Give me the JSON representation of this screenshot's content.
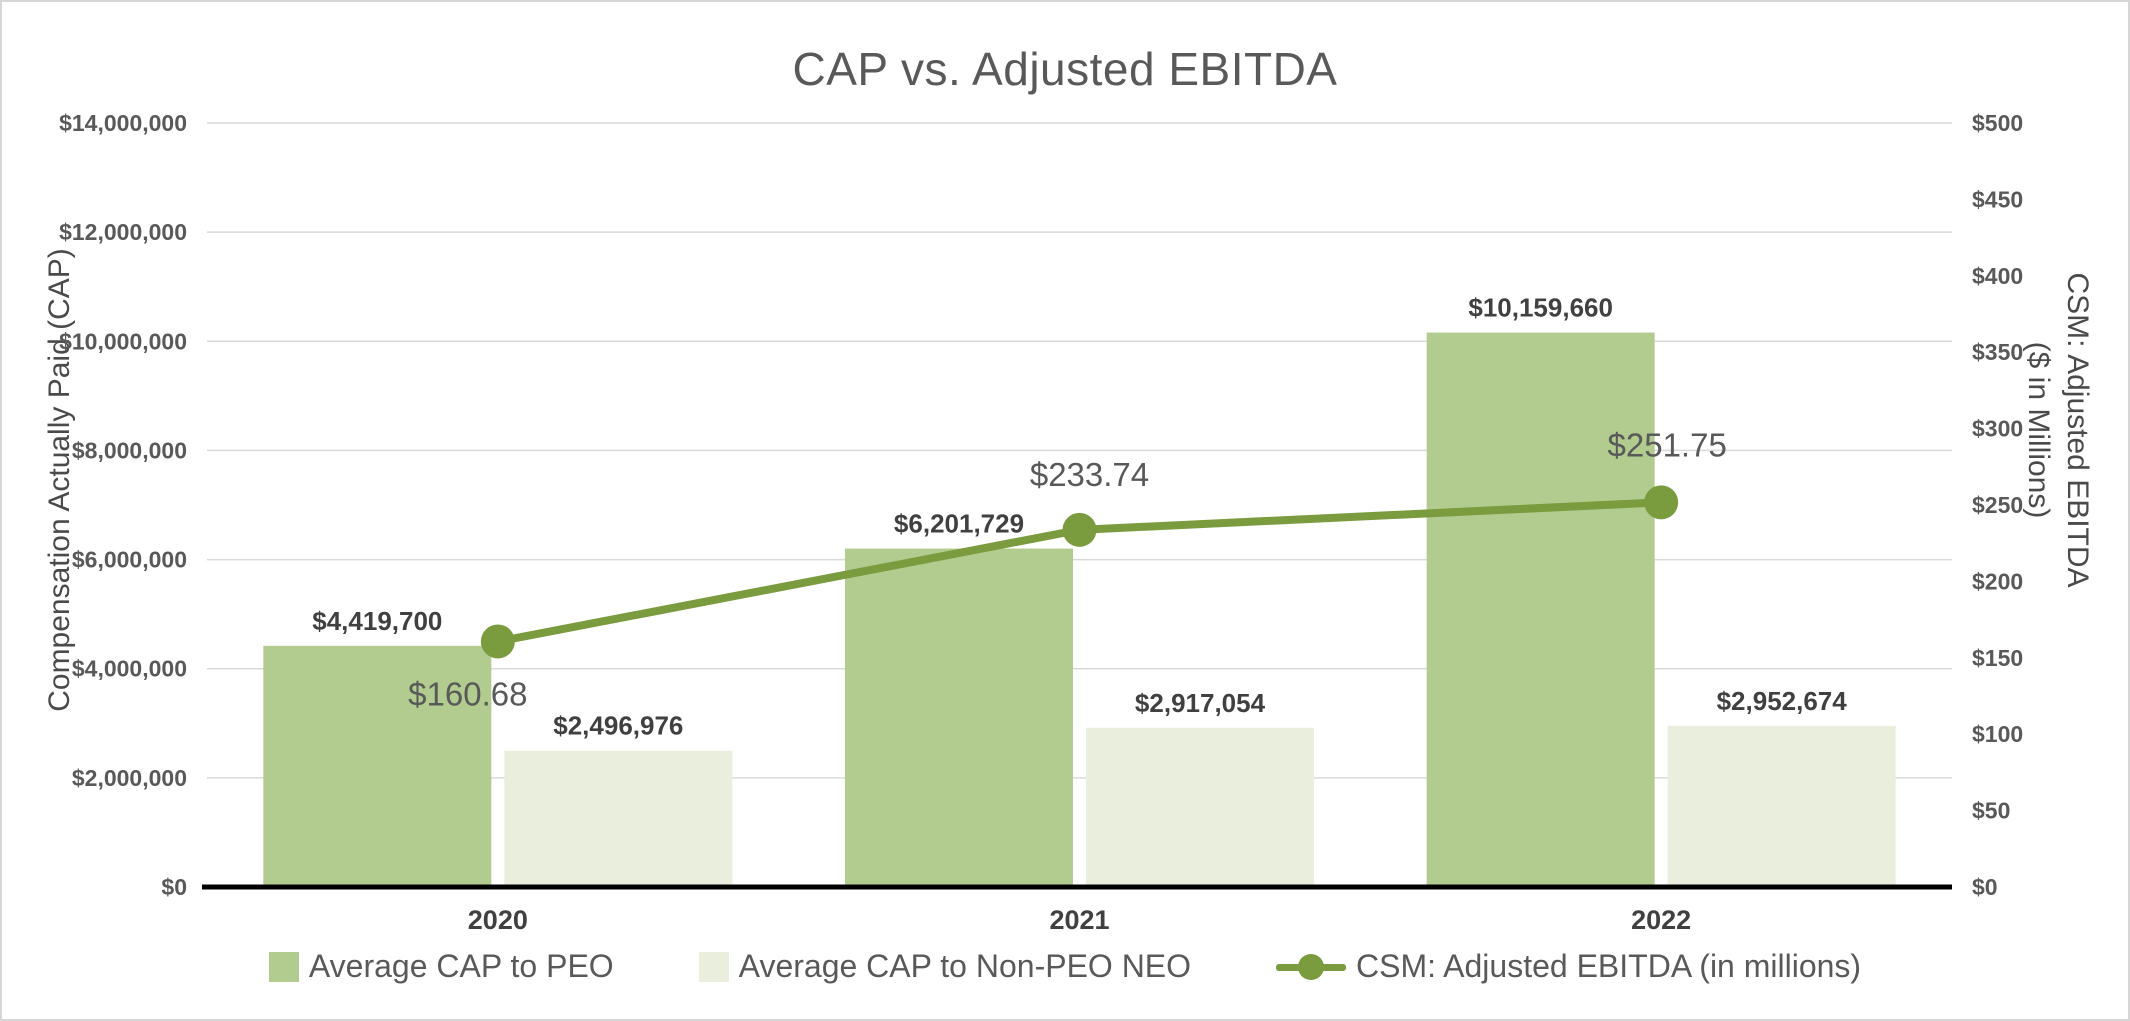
{
  "chart_data": {
    "type": "bar",
    "subtype": "combo-bar-line",
    "title": "CAP vs. Adjusted EBITDA",
    "categories": [
      "2020",
      "2021",
      "2022"
    ],
    "series": [
      {
        "name": "Average CAP to PEO",
        "type": "bar",
        "axis": "left",
        "color": "#b2cb8e",
        "values": [
          4419700,
          6201729,
          10159660
        ],
        "labels": [
          "$4,419,700",
          "$6,201,729",
          "$10,159,660"
        ]
      },
      {
        "name": "Average CAP to Non-PEO NEO",
        "type": "bar",
        "axis": "left",
        "color": "#e9eedd",
        "values": [
          2496976,
          2917054,
          2952674
        ],
        "labels": [
          "$2,496,976",
          "$2,917,054",
          "$2,952,674"
        ]
      },
      {
        "name": "CSM: Adjusted EBITDA (in millions)",
        "type": "line",
        "axis": "right",
        "color": "#7a9b3e",
        "values": [
          160.68,
          233.74,
          251.75
        ],
        "labels": [
          "$160.68",
          "$233.74",
          "$251.75"
        ]
      }
    ],
    "left_axis": {
      "title": "Compensation Actually Paid (CAP)",
      "min": 0,
      "max": 14000000,
      "step": 2000000,
      "tick_labels": [
        "$0",
        "$2,000,000",
        "$4,000,000",
        "$6,000,000",
        "$8,000,000",
        "$10,000,000",
        "$12,000,000",
        "$14,000,000"
      ]
    },
    "right_axis": {
      "title_line1": "CSM: Adjusted EBITDA",
      "title_line2": "($ in Millions)",
      "min": 0,
      "max": 500,
      "step": 50,
      "tick_labels": [
        "$0",
        "$50",
        "$100",
        "$150",
        "$200",
        "$250",
        "$300",
        "$350",
        "$400",
        "$450",
        "$500"
      ]
    },
    "legend_position": "bottom",
    "grid": "horizontal",
    "grid_color": "#d9d9d9",
    "axis_line_color": "#000000",
    "title_color": "#595959"
  }
}
